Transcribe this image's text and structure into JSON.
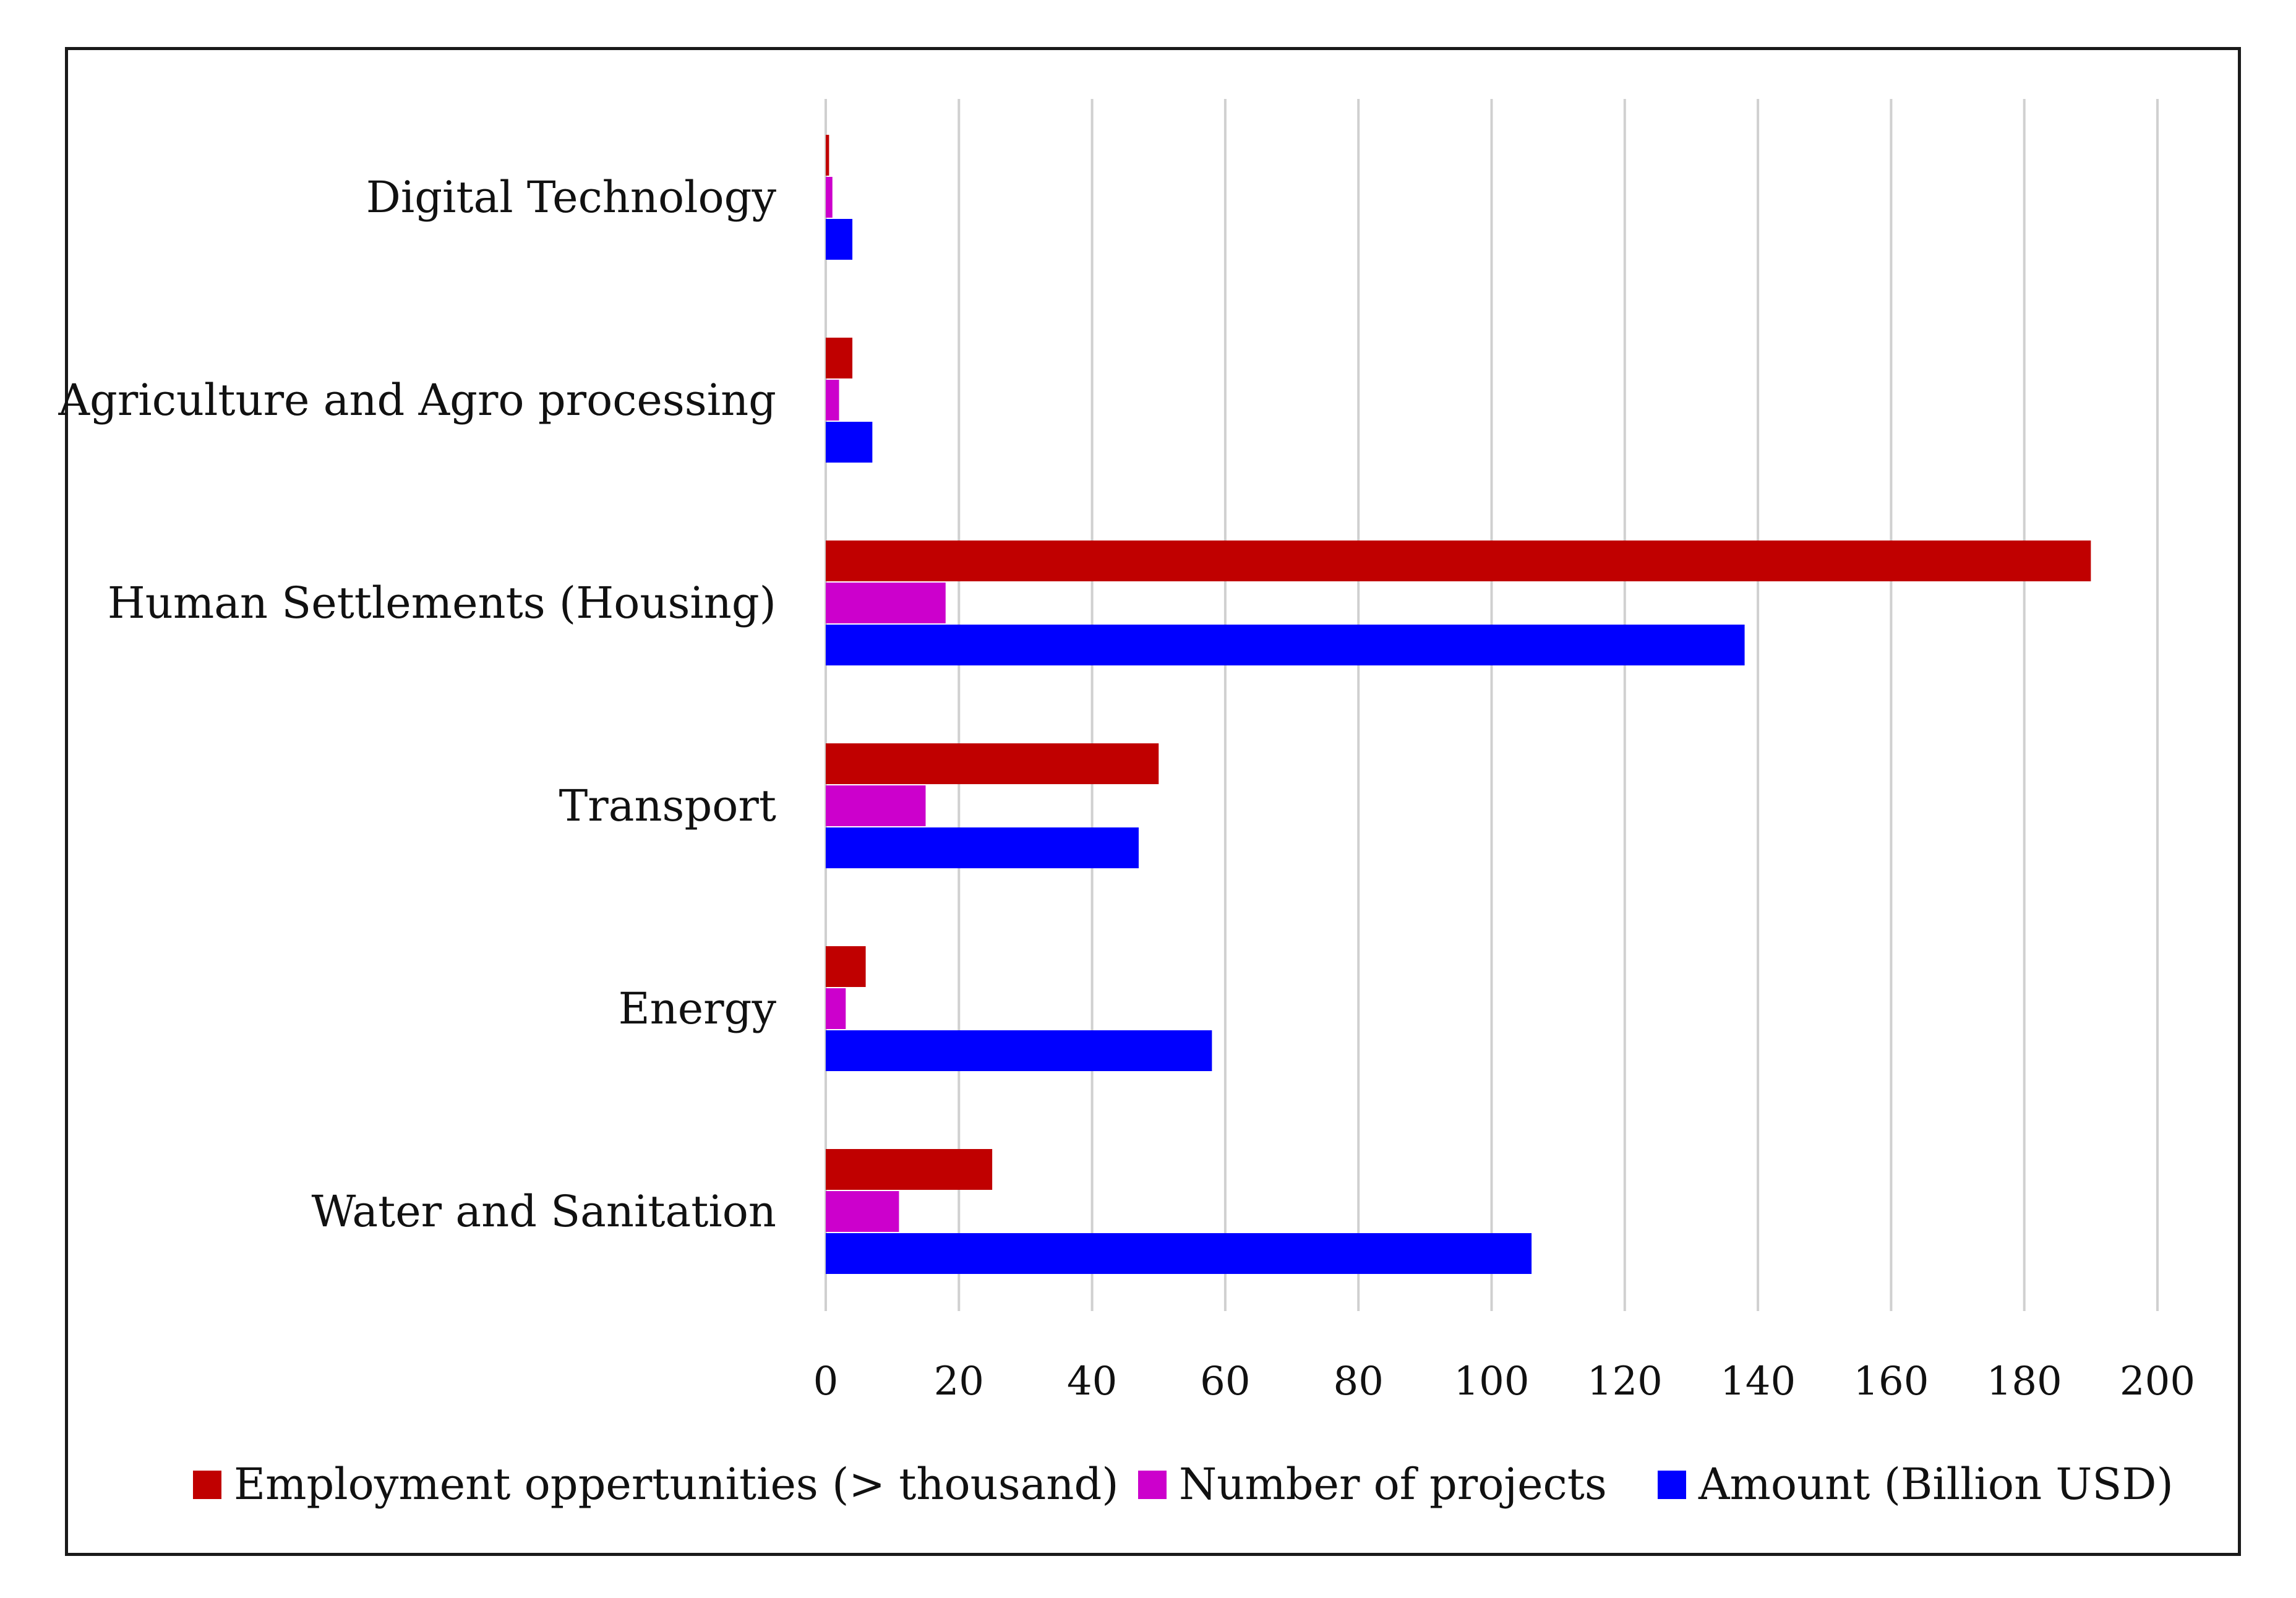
{
  "chart_data": {
    "type": "bar",
    "orientation": "horizontal",
    "title": "",
    "xlabel": "",
    "ylabel": "",
    "xlim": [
      0,
      200
    ],
    "x_ticks": [
      "0",
      "20",
      "40",
      "60",
      "80",
      "100",
      "120",
      "140",
      "160",
      "180",
      "200"
    ],
    "grid": true,
    "categories": [
      "Digital Technology",
      "Agriculture and Agro processing",
      "Human Settlements (Housing)",
      "Transport",
      "Energy",
      "Water and Sanitation"
    ],
    "series": [
      {
        "name": "Employment oppertunities (> thousand)",
        "color": "#c00000",
        "values": [
          0.5,
          4,
          190,
          50,
          6,
          25
        ]
      },
      {
        "name": "Number of projects",
        "color": "#cc00cc",
        "values": [
          1,
          2,
          18,
          15,
          3,
          11
        ]
      },
      {
        "name": "Amount (Billion USD)",
        "color": "#0000ff",
        "values": [
          4,
          7,
          138,
          47,
          58,
          106
        ]
      }
    ],
    "legend_position": "bottom"
  }
}
